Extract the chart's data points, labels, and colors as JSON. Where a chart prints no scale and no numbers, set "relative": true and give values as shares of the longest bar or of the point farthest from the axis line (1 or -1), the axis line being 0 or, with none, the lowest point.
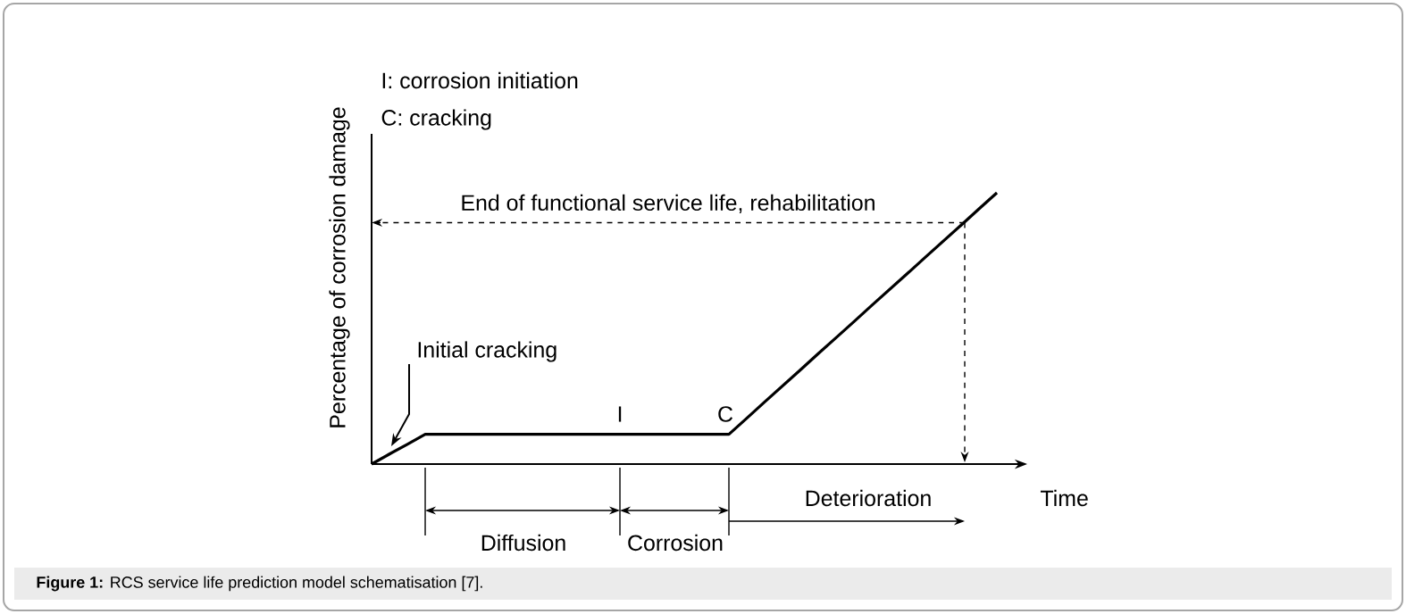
{
  "chart_data": {
    "type": "line",
    "relative": true,
    "xlabel": "Time",
    "ylabel": "Percentage of corrosion damage",
    "categories": [
      null,
      null,
      null,
      null,
      null,
      null,
      null,
      null,
      null,
      null,
      null,
      null,
      null,
      null,
      null,
      null,
      null,
      null,
      null,
      null,
      null,
      null,
      null,
      null,
      null,
      null,
      null,
      null,
      null,
      null,
      null,
      null,
      null,
      null,
      null,
      null
    ],
    "series": [
      {
        "color": "#000000",
        "values": [
          0,
          0.037,
          0.073,
          0.11,
          0.11,
          0.11,
          0.11,
          0.11,
          0.11,
          0.11,
          0.11,
          0.11,
          0.11,
          0.11,
          0.11,
          0.11,
          0.11,
          0.11,
          0.11,
          0.11,
          0.11,
          0.169,
          0.229,
          0.288,
          0.347,
          0.407,
          0.466,
          0.525,
          0.585,
          0.644,
          0.703,
          0.763,
          0.822,
          0.881,
          0.941,
          1.0
        ]
      }
    ],
    "ref_lines": [
      {
        "axis": "y",
        "value": 0.89,
        "label": "End of functional service life, rehabilitation",
        "line_style": "dashed"
      }
    ],
    "annotations": [
      "I: corrosion initiation",
      "C: cracking",
      "Initial cracking",
      "I",
      "C",
      "Diffusion",
      "Corrosion",
      "Deterioration",
      "**Figure 1:** RCS service life prediction model schematisation [7]."
    ],
    "line_style": "solid",
    "marker": "none"
  }
}
